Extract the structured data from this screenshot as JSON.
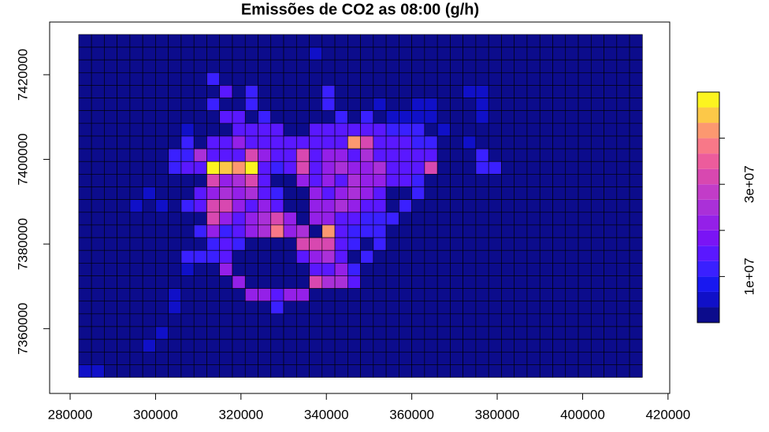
{
  "chart_data": {
    "type": "heatmap",
    "title": "Emissões de CO2 as 08:00 (g/h)",
    "x": [
      283500,
      286500,
      289500,
      292500,
      295500,
      298500,
      301500,
      304500,
      307500,
      310500,
      313500,
      316500,
      319500,
      322500,
      325500,
      328500,
      331500,
      334500,
      337500,
      340500,
      343500,
      346500,
      349500,
      352500,
      355500,
      358500,
      361500,
      364500,
      367500,
      370500,
      373500,
      376500,
      379500,
      382500,
      385500,
      388500,
      391500,
      394500,
      397500,
      400500,
      403500,
      406500,
      409500,
      412500
    ],
    "y": [
      7428000,
      7425000,
      7422000,
      7419000,
      7416000,
      7413000,
      7410000,
      7407000,
      7404000,
      7401000,
      7398000,
      7395000,
      7392000,
      7389000,
      7386000,
      7383000,
      7380000,
      7377000,
      7374000,
      7371000,
      7368000,
      7365000,
      7362000,
      7359000,
      7356000,
      7353000,
      7350000
    ],
    "z": [
      [
        0,
        0,
        0,
        0,
        0,
        0,
        0,
        0,
        0,
        0,
        0,
        0,
        0,
        0,
        0,
        0,
        0,
        0,
        0,
        0,
        0,
        0,
        0,
        0,
        0,
        0,
        0,
        0,
        0,
        0,
        0,
        0,
        0,
        0,
        0,
        0,
        0,
        0,
        0,
        0,
        0,
        0,
        0,
        0
      ],
      [
        0,
        0,
        0,
        0,
        0,
        0,
        0,
        0,
        0,
        0,
        0,
        0,
        0,
        0,
        0,
        0,
        0,
        0,
        5000000.0,
        0,
        0,
        0,
        0,
        0,
        0,
        0,
        0,
        0,
        0,
        0,
        0,
        0,
        0,
        0,
        0,
        0,
        0,
        0,
        0,
        0,
        0,
        0,
        0,
        0
      ],
      [
        0,
        0,
        0,
        0,
        0,
        0,
        0,
        0,
        0,
        0,
        0,
        0,
        0,
        0,
        0,
        0,
        0,
        0,
        0,
        0,
        0,
        0,
        0,
        0,
        0,
        0,
        0,
        0,
        0,
        0,
        0,
        0,
        0,
        0,
        0,
        0,
        0,
        0,
        0,
        0,
        0,
        0,
        0,
        0
      ],
      [
        0,
        0,
        0,
        0,
        0,
        0,
        0,
        0,
        0,
        0,
        10000000.0,
        0,
        0,
        0,
        0,
        0,
        0,
        0,
        0,
        0,
        0,
        0,
        0,
        0,
        0,
        0,
        0,
        0,
        0,
        0,
        0,
        0,
        0,
        0,
        0,
        0,
        0,
        0,
        0,
        0,
        0,
        0,
        0,
        0
      ],
      [
        0,
        0,
        0,
        0,
        0,
        0,
        0,
        0,
        0,
        0,
        0,
        15000000.0,
        0,
        10000000.0,
        0,
        0,
        0,
        0,
        0,
        10000000.0,
        0,
        0,
        0,
        0,
        0,
        0,
        0,
        0,
        0,
        0,
        5000000.0,
        5000000.0,
        0,
        0,
        0,
        0,
        0,
        0,
        0,
        0,
        0,
        0,
        0,
        0
      ],
      [
        0,
        0,
        0,
        0,
        0,
        0,
        0,
        0,
        0,
        0,
        10000000.0,
        0,
        0,
        10000000.0,
        0,
        0,
        0,
        0,
        0,
        10000000.0,
        0,
        0,
        0,
        5000000.0,
        0,
        0,
        5000000.0,
        5000000.0,
        0,
        0,
        0,
        5000000.0,
        0,
        0,
        0,
        0,
        0,
        0,
        0,
        0,
        0,
        0,
        0,
        0
      ],
      [
        0,
        0,
        0,
        0,
        0,
        0,
        0,
        0,
        0,
        0,
        0,
        15000000.0,
        15000000.0,
        0,
        10000000.0,
        0,
        0,
        0,
        0,
        0,
        10000000.0,
        0,
        10000000.0,
        0,
        5000000.0,
        5000000.0,
        5000000.0,
        5000000.0,
        0,
        0,
        0,
        5000000.0,
        0,
        0,
        0,
        0,
        0,
        0,
        0,
        0,
        0,
        0,
        0,
        0
      ],
      [
        0,
        0,
        0,
        0,
        0,
        0,
        0,
        0,
        5000000.0,
        0,
        0,
        0,
        15000000.0,
        15000000.0,
        15000000.0,
        15000000.0,
        0,
        0,
        15000000.0,
        15000000.0,
        15000000.0,
        15000000.0,
        15000000.0,
        15000000.0,
        10000000.0,
        10000000.0,
        10000000.0,
        0,
        5000000.0,
        0,
        0,
        0,
        0,
        0,
        0,
        0,
        0,
        0,
        0,
        0,
        0,
        0,
        0,
        0
      ],
      [
        0,
        0,
        0,
        0,
        0,
        0,
        0,
        0,
        10000000.0,
        0,
        15000000.0,
        15000000.0,
        20000000.0,
        15000000.0,
        15000000.0,
        15000000.0,
        15000000.0,
        15000000.0,
        15000000.0,
        15000000.0,
        15000000.0,
        40000000.0,
        30000000.0,
        15000000.0,
        15000000.0,
        15000000.0,
        10000000.0,
        10000000.0,
        0,
        0,
        5000000.0,
        0,
        0,
        0,
        0,
        0,
        0,
        0,
        0,
        0,
        0,
        0,
        0,
        0
      ],
      [
        0,
        0,
        0,
        0,
        0,
        0,
        0,
        10000000.0,
        10000000.0,
        25000000.0,
        15000000.0,
        15000000.0,
        15000000.0,
        30000000.0,
        20000000.0,
        15000000.0,
        15000000.0,
        30000000.0,
        15000000.0,
        20000000.0,
        20000000.0,
        15000000.0,
        25000000.0,
        15000000.0,
        15000000.0,
        15000000.0,
        15000000.0,
        15000000.0,
        0,
        0,
        0,
        10000000.0,
        0,
        0,
        0,
        0,
        0,
        0,
        0,
        0,
        0,
        0,
        0,
        0
      ],
      [
        0,
        0,
        0,
        0,
        0,
        0,
        0,
        10000000.0,
        15000000.0,
        15000000.0,
        48000000.0,
        45000000.0,
        43000000.0,
        48000000.0,
        15000000.0,
        10000000.0,
        15000000.0,
        30000000.0,
        15000000.0,
        20000000.0,
        25000000.0,
        20000000.0,
        20000000.0,
        25000000.0,
        15000000.0,
        15000000.0,
        15000000.0,
        30000000.0,
        0,
        0,
        0,
        10000000.0,
        10000000.0,
        0,
        0,
        0,
        0,
        0,
        0,
        0,
        0,
        0,
        0,
        0
      ],
      [
        0,
        0,
        0,
        0,
        0,
        0,
        0,
        0,
        0,
        0,
        33000000.0,
        20000000.0,
        25000000.0,
        30000000.0,
        15000000.0,
        0,
        0,
        20000000.0,
        15000000.0,
        20000000.0,
        15000000.0,
        25000000.0,
        20000000.0,
        20000000.0,
        15000000.0,
        15000000.0,
        10000000.0,
        0,
        0,
        0,
        0,
        0,
        0,
        0,
        0,
        0,
        0,
        0,
        0,
        0,
        0,
        0,
        0,
        0
      ],
      [
        0,
        0,
        0,
        0,
        0,
        5000000.0,
        0,
        0,
        0,
        15000000.0,
        20000000.0,
        25000000.0,
        20000000.0,
        25000000.0,
        15000000.0,
        10000000.0,
        0,
        0,
        20000000.0,
        15000000.0,
        20000000.0,
        25000000.0,
        20000000.0,
        15000000.0,
        0,
        0,
        10000000.0,
        0,
        0,
        0,
        0,
        0,
        0,
        0,
        0,
        0,
        0,
        0,
        0,
        0,
        0,
        0,
        0,
        0
      ],
      [
        0,
        0,
        0,
        0,
        5000000.0,
        0,
        5000000.0,
        0,
        10000000.0,
        15000000.0,
        30000000.0,
        32000000.0,
        20000000.0,
        15000000.0,
        20000000.0,
        15000000.0,
        0,
        0,
        20000000.0,
        20000000.0,
        25000000.0,
        20000000.0,
        15000000.0,
        15000000.0,
        0,
        10000000.0,
        0,
        0,
        0,
        0,
        0,
        0,
        0,
        0,
        0,
        0,
        0,
        0,
        0,
        0,
        0,
        0,
        0,
        0
      ],
      [
        0,
        0,
        0,
        0,
        0,
        0,
        0,
        0,
        0,
        0,
        30000000.0,
        20000000.0,
        15000000.0,
        20000000.0,
        25000000.0,
        30000000.0,
        20000000.0,
        0,
        20000000.0,
        20000000.0,
        15000000.0,
        15000000.0,
        10000000.0,
        10000000.0,
        10000000.0,
        0,
        0,
        0,
        0,
        0,
        0,
        0,
        0,
        0,
        0,
        0,
        0,
        0,
        0,
        0,
        0,
        0,
        0,
        0
      ],
      [
        0,
        0,
        0,
        0,
        0,
        0,
        0,
        0,
        0,
        10000000.0,
        20000000.0,
        10000000.0,
        15000000.0,
        20000000.0,
        25000000.0,
        38000000.0,
        20000000.0,
        25000000.0,
        0,
        40000000.0,
        15000000.0,
        10000000.0,
        10000000.0,
        10000000.0,
        0,
        0,
        0,
        0,
        0,
        0,
        0,
        0,
        0,
        0,
        0,
        0,
        0,
        0,
        0,
        0,
        0,
        0,
        0,
        0
      ],
      [
        0,
        0,
        0,
        0,
        0,
        0,
        0,
        0,
        0,
        0,
        10000000.0,
        15000000.0,
        10000000.0,
        0,
        0,
        0,
        0,
        32000000.0,
        32000000.0,
        32000000.0,
        15000000.0,
        10000000.0,
        0,
        10000000.0,
        0,
        0,
        0,
        0,
        0,
        0,
        0,
        0,
        0,
        0,
        0,
        0,
        0,
        0,
        0,
        0,
        0,
        0,
        0,
        0
      ],
      [
        0,
        0,
        0,
        0,
        0,
        0,
        0,
        0,
        10000000.0,
        10000000.0,
        10000000.0,
        15000000.0,
        0,
        0,
        0,
        0,
        0,
        15000000.0,
        20000000.0,
        25000000.0,
        15000000.0,
        0,
        10000000.0,
        0,
        0,
        0,
        0,
        0,
        0,
        0,
        0,
        0,
        0,
        0,
        0,
        0,
        0,
        0,
        0,
        0,
        0,
        0,
        0,
        0
      ],
      [
        0,
        0,
        0,
        0,
        0,
        0,
        0,
        0,
        5000000.0,
        0,
        0,
        20000000.0,
        0,
        0,
        0,
        0,
        0,
        0,
        15000000.0,
        15000000.0,
        20000000.0,
        10000000.0,
        0,
        0,
        0,
        0,
        0,
        0,
        0,
        0,
        0,
        0,
        0,
        0,
        0,
        0,
        0,
        0,
        0,
        0,
        0,
        0,
        0,
        0
      ],
      [
        0,
        0,
        0,
        0,
        0,
        0,
        0,
        0,
        0,
        0,
        0,
        0,
        20000000.0,
        0,
        0,
        0,
        0,
        0,
        30000000.0,
        25000000.0,
        25000000.0,
        15000000.0,
        0,
        0,
        0,
        0,
        0,
        0,
        0,
        0,
        0,
        0,
        0,
        0,
        0,
        0,
        0,
        0,
        0,
        0,
        0,
        0,
        0,
        0
      ],
      [
        0,
        0,
        0,
        0,
        0,
        0,
        0,
        5000000.0,
        0,
        0,
        0,
        0,
        0,
        20000000.0,
        20000000.0,
        15000000.0,
        20000000.0,
        20000000.0,
        0,
        0,
        0,
        0,
        0,
        0,
        0,
        0,
        0,
        0,
        0,
        0,
        0,
        0,
        0,
        0,
        0,
        0,
        0,
        0,
        0,
        0,
        0,
        0,
        0,
        0
      ],
      [
        0,
        0,
        0,
        0,
        0,
        0,
        0,
        5000000.0,
        0,
        0,
        0,
        0,
        0,
        0,
        0,
        10000000.0,
        0,
        0,
        0,
        0,
        0,
        0,
        0,
        0,
        0,
        0,
        0,
        0,
        0,
        0,
        0,
        0,
        0,
        0,
        0,
        0,
        0,
        0,
        0,
        0,
        0,
        0,
        0,
        0
      ],
      [
        0,
        0,
        0,
        0,
        0,
        0,
        0,
        0,
        0,
        0,
        0,
        0,
        0,
        0,
        0,
        0,
        0,
        0,
        0,
        0,
        0,
        0,
        0,
        0,
        0,
        0,
        0,
        0,
        0,
        0,
        0,
        0,
        0,
        0,
        0,
        0,
        0,
        0,
        0,
        0,
        0,
        0,
        0,
        0
      ],
      [
        0,
        0,
        0,
        0,
        0,
        0,
        5000000.0,
        0,
        0,
        0,
        0,
        0,
        0,
        0,
        0,
        0,
        0,
        0,
        0,
        0,
        0,
        0,
        0,
        0,
        0,
        0,
        0,
        0,
        0,
        0,
        0,
        0,
        0,
        0,
        0,
        0,
        0,
        0,
        0,
        0,
        0,
        0,
        0,
        0
      ],
      [
        0,
        0,
        0,
        0,
        0,
        5000000.0,
        0,
        0,
        0,
        0,
        0,
        0,
        0,
        0,
        0,
        0,
        0,
        0,
        0,
        0,
        0,
        0,
        0,
        0,
        0,
        0,
        0,
        0,
        0,
        0,
        0,
        0,
        0,
        0,
        0,
        0,
        0,
        0,
        0,
        0,
        0,
        0,
        0,
        0
      ],
      [
        0,
        0,
        0,
        0,
        0,
        0,
        0,
        0,
        0,
        0,
        0,
        0,
        0,
        0,
        0,
        0,
        0,
        0,
        0,
        0,
        0,
        0,
        0,
        0,
        0,
        0,
        0,
        0,
        0,
        0,
        0,
        0,
        0,
        0,
        0,
        0,
        0,
        0,
        0,
        0,
        0,
        0,
        0,
        0
      ],
      [
        5000000.0,
        5000000.0,
        0,
        0,
        0,
        0,
        0,
        0,
        0,
        0,
        0,
        0,
        0,
        0,
        0,
        0,
        0,
        0,
        0,
        0,
        0,
        0,
        0,
        0,
        0,
        0,
        0,
        0,
        0,
        0,
        0,
        0,
        0,
        0,
        0,
        0,
        0,
        0,
        0,
        0,
        0,
        0,
        0,
        0
      ]
    ],
    "xlim": [
      275200,
      420400
    ],
    "xticks": [
      280000,
      300000,
      320000,
      340000,
      360000,
      380000,
      400000,
      420000
    ],
    "ylim": [
      7344700,
      7432450
    ],
    "yticks": [
      7360000,
      7380000,
      7400000,
      7420000
    ],
    "zlim": [
      0,
      50000000.0
    ],
    "zticks": [
      {
        "value": 10000000.0,
        "label": "1e+07"
      },
      {
        "value": 20000000.0,
        "label": null
      },
      {
        "value": 30000000.0,
        "label": "3e+07"
      },
      {
        "value": 40000000.0,
        "label": null
      }
    ],
    "colors": [
      "#0c0c8c",
      "#1010c8",
      "#1818f0",
      "#3a20ff",
      "#5a18ff",
      "#7a14f5",
      "#9420e8",
      "#aa30d8",
      "#c23cc8",
      "#d848b0",
      "#ec5c9c",
      "#f87888",
      "#fc9870",
      "#fcc848",
      "#fcf420"
    ],
    "cell_border": "#000000"
  }
}
